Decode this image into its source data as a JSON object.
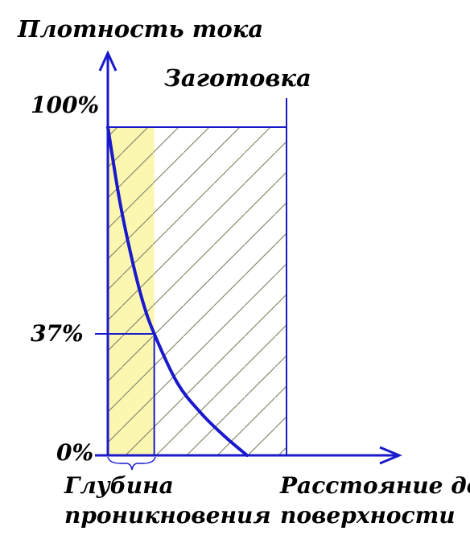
{
  "chart_data": {
    "type": "line",
    "title": "",
    "ylabel": "Плотность тока",
    "xlabel_lines": [
      "Расстояние до",
      "поверхности"
    ],
    "region_label": "Заготовка",
    "depth_label_lines": [
      "Глубина",
      "проникновения"
    ],
    "y_ticks": [
      "100%",
      "37%",
      "0%"
    ],
    "ylim": [
      0,
      100
    ],
    "xlim": [
      0,
      3.85
    ],
    "workpiece_end_x": 3.85,
    "penetration_depth_x": 1.0,
    "grid": false,
    "series": [
      {
        "x": [
          0,
          0.25,
          0.5,
          0.75,
          1.0,
          1.5,
          2.0,
          2.5,
          3.0
        ],
        "values": [
          100,
          78,
          61,
          47,
          37,
          22,
          13,
          6,
          0
        ]
      }
    ],
    "colors": {
      "curve": "#1a1acc",
      "axis": "#1a1acc",
      "depth_fill": "#fbf7b0",
      "hatch": "#8a8a70"
    }
  }
}
